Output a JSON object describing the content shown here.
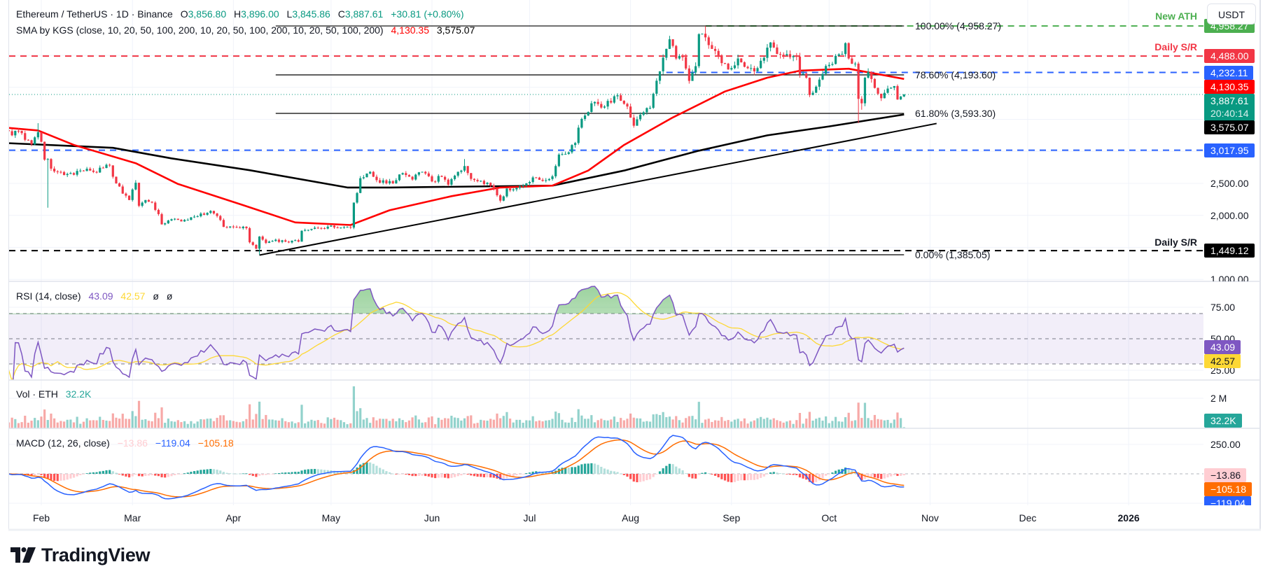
{
  "header": {
    "symbol": "Ethereum / TetherUS · 1D · Binance",
    "o_label": "O",
    "o": "3,856.80",
    "h_label": "H",
    "h": "3,896.00",
    "l_label": "L",
    "l": "3,845.86",
    "c_label": "C",
    "c": "3,887.61",
    "change": "+30.81 (+0.80%)"
  },
  "sma_legend": {
    "title": "SMA by KGS (close, 10, 20, 50, 100, 200, 10, 20, 50, 100, 200, 10, 20, 50, 100, 200)",
    "value_50": "4,130.35",
    "value_200": "3,575.07"
  },
  "rsi_legend": {
    "title": "RSI (14, close)",
    "rsi": "43.09",
    "ma": "42.57",
    "extra1": "ø",
    "extra2": "ø"
  },
  "vol_legend": {
    "title": "Vol · ETH",
    "value": "32.2K"
  },
  "macd_legend": {
    "title": "MACD (12, 26, close)",
    "hist": "−13.86",
    "macd": "−119.04",
    "signal": "−105.18"
  },
  "currency_button": "USDT",
  "line_notes": {
    "new_ath": "New ATH",
    "daily_sr_top": "Daily S/R",
    "daily_sr_bottom": "Daily S/R"
  },
  "colors": {
    "up": "#089981",
    "down": "#f23645",
    "sma50": "#ff0000",
    "sma200": "#000000",
    "rsi": "#7e57c2",
    "rsi_ma": "#fdd835",
    "macd": "#2962ff",
    "signal": "#ff6d00",
    "ath": "#4caf50",
    "support_red": "#f23645",
    "support_blue": "#2962ff",
    "support_black": "#000000"
  },
  "price_axis": {
    "ticks": [
      {
        "value": 2500,
        "text": "2,500.00"
      },
      {
        "value": 2000,
        "text": "2,000.00"
      },
      {
        "value": 1000,
        "text": "1,000.00"
      }
    ],
    "badges": [
      {
        "value": 4958.27,
        "text": "4,958.27",
        "bg": "#4caf50",
        "fg": "#ffffff"
      },
      {
        "value": 4488.0,
        "text": "4,488.00",
        "bg": "#f23645",
        "fg": "#ffffff"
      },
      {
        "value": 4232.11,
        "text": "4,232.11",
        "bg": "#2962ff",
        "fg": "#ffffff"
      },
      {
        "value": 4130.35,
        "text": "4,130.35",
        "bg": "#ff0000",
        "fg": "#ffffff"
      },
      {
        "value": 3887.61,
        "text": "3,887.61",
        "text2": "20:40:14",
        "bg": "#089981",
        "fg": "#ffffff"
      },
      {
        "value": 3575.07,
        "text": "3,575.07",
        "bg": "#000000",
        "fg": "#ffffff"
      },
      {
        "value": 3017.95,
        "text": "3,017.95",
        "bg": "#2962ff",
        "fg": "#ffffff"
      },
      {
        "value": 1449.12,
        "text": "1,449.12",
        "bg": "#000000",
        "fg": "#ffffff"
      }
    ]
  },
  "rsi_axis": {
    "ticks": [
      {
        "value": 75,
        "text": "75.00"
      },
      {
        "value": 50,
        "text": "50.00"
      },
      {
        "value": 25,
        "text": "25.00"
      }
    ],
    "badges": [
      {
        "value": 43.09,
        "text": "43.09",
        "bg": "#7e57c2",
        "fg": "#ffffff"
      },
      {
        "value": 42.57,
        "text": "42.57",
        "bg": "#fdd835",
        "fg": "#131722"
      }
    ]
  },
  "vol_axis": {
    "tick": "2 M",
    "badge": {
      "text": "32.2K",
      "bg": "#26a69a",
      "fg": "#ffffff"
    }
  },
  "macd_axis": {
    "ticks": [
      {
        "value": 250,
        "text": "250.00"
      }
    ],
    "badges": [
      {
        "value": -13.86,
        "text": "−13.86",
        "bg": "#ffcdd2",
        "fg": "#131722"
      },
      {
        "value": -105.18,
        "text": "−105.18",
        "bg": "#ff6d00",
        "fg": "#ffffff"
      },
      {
        "value": -119.04,
        "text": "−119.04",
        "bg": "#2962ff",
        "fg": "#ffffff"
      }
    ]
  },
  "time_axis": [
    {
      "date": "2025-02-01",
      "text": "Feb"
    },
    {
      "date": "2025-03-01",
      "text": "Mar"
    },
    {
      "date": "2025-04-01",
      "text": "Apr"
    },
    {
      "date": "2025-05-01",
      "text": "May"
    },
    {
      "date": "2025-06-01",
      "text": "Jun"
    },
    {
      "date": "2025-07-01",
      "text": "Jul"
    },
    {
      "date": "2025-08-01",
      "text": "Aug"
    },
    {
      "date": "2025-09-01",
      "text": "Sep"
    },
    {
      "date": "2025-10-01",
      "text": "Oct"
    },
    {
      "date": "2025-11-01",
      "text": "Nov"
    },
    {
      "date": "2025-12-01",
      "text": "Dec"
    },
    {
      "date": "2026-01-01",
      "text": "2026",
      "bold": true
    }
  ],
  "brand": "TradingView",
  "chart_data": {
    "type": "candlestick",
    "title": "Ethereum / TetherUS · 1D · Binance",
    "scale": "linear",
    "grid": true,
    "ylim": [
      1000,
      5000
    ],
    "close_keyframes": [
      [
        "2025-01-21",
        3330
      ],
      [
        "2025-01-23",
        3250
      ],
      [
        "2025-01-25",
        3320
      ],
      [
        "2025-01-27",
        3180
      ],
      [
        "2025-01-29",
        3110
      ],
      [
        "2025-01-31",
        3300
      ],
      [
        "2025-02-01",
        3150
      ],
      [
        "2025-02-02",
        2870
      ],
      [
        "2025-02-03",
        2880
      ],
      [
        "2025-02-04",
        2730
      ],
      [
        "2025-02-06",
        2680
      ],
      [
        "2025-02-08",
        2630
      ],
      [
        "2025-02-10",
        2660
      ],
      [
        "2025-02-13",
        2700
      ],
      [
        "2025-02-16",
        2700
      ],
      [
        "2025-02-18",
        2670
      ],
      [
        "2025-02-20",
        2740
      ],
      [
        "2025-02-22",
        2780
      ],
      [
        "2025-02-24",
        2500
      ],
      [
        "2025-02-26",
        2340
      ],
      [
        "2025-02-28",
        2240
      ],
      [
        "2025-03-02",
        2510
      ],
      [
        "2025-03-03",
        2150
      ],
      [
        "2025-03-05",
        2240
      ],
      [
        "2025-03-07",
        2200
      ],
      [
        "2025-03-09",
        2020
      ],
      [
        "2025-03-10",
        1860
      ],
      [
        "2025-03-12",
        1920
      ],
      [
        "2025-03-15",
        1930
      ],
      [
        "2025-03-18",
        1930
      ],
      [
        "2025-03-20",
        1980
      ],
      [
        "2025-03-23",
        2010
      ],
      [
        "2025-03-25",
        2070
      ],
      [
        "2025-03-27",
        1990
      ],
      [
        "2025-03-29",
        1820
      ],
      [
        "2025-04-01",
        1820
      ],
      [
        "2025-04-03",
        1800
      ],
      [
        "2025-04-05",
        1800
      ],
      [
        "2025-04-06",
        1580
      ],
      [
        "2025-04-08",
        1480
      ],
      [
        "2025-04-09",
        1670
      ],
      [
        "2025-04-11",
        1570
      ],
      [
        "2025-04-14",
        1620
      ],
      [
        "2025-04-17",
        1590
      ],
      [
        "2025-04-21",
        1590
      ],
      [
        "2025-04-22",
        1760
      ],
      [
        "2025-04-25",
        1790
      ],
      [
        "2025-04-28",
        1800
      ],
      [
        "2025-05-01",
        1840
      ],
      [
        "2025-05-04",
        1810
      ],
      [
        "2025-05-07",
        1810
      ],
      [
        "2025-05-08",
        2200
      ],
      [
        "2025-05-09",
        2350
      ],
      [
        "2025-05-10",
        2580
      ],
      [
        "2025-05-13",
        2680
      ],
      [
        "2025-05-15",
        2550
      ],
      [
        "2025-05-18",
        2500
      ],
      [
        "2025-05-21",
        2550
      ],
      [
        "2025-05-23",
        2660
      ],
      [
        "2025-05-26",
        2560
      ],
      [
        "2025-05-29",
        2680
      ],
      [
        "2025-06-01",
        2530
      ],
      [
        "2025-06-04",
        2600
      ],
      [
        "2025-06-06",
        2480
      ],
      [
        "2025-06-09",
        2680
      ],
      [
        "2025-06-11",
        2770
      ],
      [
        "2025-06-13",
        2570
      ],
      [
        "2025-06-16",
        2540
      ],
      [
        "2025-06-18",
        2510
      ],
      [
        "2025-06-20",
        2420
      ],
      [
        "2025-06-22",
        2230
      ],
      [
        "2025-06-24",
        2420
      ],
      [
        "2025-06-27",
        2430
      ],
      [
        "2025-06-30",
        2500
      ],
      [
        "2025-07-03",
        2590
      ],
      [
        "2025-07-06",
        2550
      ],
      [
        "2025-07-08",
        2610
      ],
      [
        "2025-07-09",
        2770
      ],
      [
        "2025-07-10",
        2950
      ],
      [
        "2025-07-12",
        2960
      ],
      [
        "2025-07-15",
        3130
      ],
      [
        "2025-07-16",
        3370
      ],
      [
        "2025-07-18",
        3560
      ],
      [
        "2025-07-20",
        3750
      ],
      [
        "2025-07-22",
        3740
      ],
      [
        "2025-07-24",
        3700
      ],
      [
        "2025-07-27",
        3860
      ],
      [
        "2025-07-29",
        3790
      ],
      [
        "2025-07-31",
        3700
      ],
      [
        "2025-08-02",
        3400
      ],
      [
        "2025-08-03",
        3500
      ],
      [
        "2025-08-05",
        3610
      ],
      [
        "2025-08-07",
        3680
      ],
      [
        "2025-08-08",
        3900
      ],
      [
        "2025-08-10",
        4250
      ],
      [
        "2025-08-12",
        4600
      ],
      [
        "2025-08-13",
        4750
      ],
      [
        "2025-08-15",
        4450
      ],
      [
        "2025-08-17",
        4470
      ],
      [
        "2025-08-19",
        4100
      ],
      [
        "2025-08-21",
        4330
      ],
      [
        "2025-08-22",
        4830
      ],
      [
        "2025-08-24",
        4780
      ],
      [
        "2025-08-26",
        4600
      ],
      [
        "2025-08-28",
        4500
      ],
      [
        "2025-08-30",
        4370
      ],
      [
        "2025-09-01",
        4300
      ],
      [
        "2025-09-03",
        4450
      ],
      [
        "2025-09-05",
        4320
      ],
      [
        "2025-09-07",
        4300
      ],
      [
        "2025-09-09",
        4300
      ],
      [
        "2025-09-11",
        4460
      ],
      [
        "2025-09-13",
        4700
      ],
      [
        "2025-09-15",
        4520
      ],
      [
        "2025-09-17",
        4500
      ],
      [
        "2025-09-19",
        4470
      ],
      [
        "2025-09-21",
        4480
      ],
      [
        "2025-09-22",
        4200
      ],
      [
        "2025-09-24",
        4150
      ],
      [
        "2025-09-25",
        3880
      ],
      [
        "2025-09-27",
        4010
      ],
      [
        "2025-09-29",
        4210
      ],
      [
        "2025-10-01",
        4350
      ],
      [
        "2025-10-03",
        4490
      ],
      [
        "2025-10-05",
        4520
      ],
      [
        "2025-10-06",
        4690
      ],
      [
        "2025-10-07",
        4450
      ],
      [
        "2025-10-09",
        4370
      ],
      [
        "2025-10-10",
        3820
      ],
      [
        "2025-10-11",
        3750
      ],
      [
        "2025-10-12",
        4150
      ],
      [
        "2025-10-13",
        4240
      ],
      [
        "2025-10-14",
        4130
      ],
      [
        "2025-10-15",
        3990
      ],
      [
        "2025-10-16",
        3900
      ],
      [
        "2025-10-17",
        3830
      ],
      [
        "2025-10-19",
        3980
      ],
      [
        "2025-10-21",
        4020
      ],
      [
        "2025-10-22",
        3810
      ],
      [
        "2025-10-23",
        3856.8
      ],
      [
        "2025-10-24",
        3887.61
      ]
    ],
    "wick_extremes": [
      {
        "date": "2025-01-31",
        "high": 3440
      },
      {
        "date": "2025-02-03",
        "low": 2120
      },
      {
        "date": "2025-03-02",
        "high": 2550
      },
      {
        "date": "2025-04-09",
        "low": 1385
      },
      {
        "date": "2025-06-11",
        "high": 2880
      },
      {
        "date": "2025-06-22",
        "low": 2200
      },
      {
        "date": "2025-08-24",
        "high": 4958.27
      },
      {
        "date": "2025-10-10",
        "low": 3440
      },
      {
        "date": "2025-10-11",
        "low": 3650
      },
      {
        "date": "2025-10-24",
        "high": 3896.0,
        "low": 3845.86
      }
    ],
    "sma50": [
      [
        "2025-01-21",
        3370
      ],
      [
        "2025-01-31",
        3326
      ],
      [
        "2025-02-11",
        3100
      ],
      [
        "2025-03-02",
        2815
      ],
      [
        "2025-03-15",
        2490
      ],
      [
        "2025-04-04",
        2160
      ],
      [
        "2025-04-20",
        1890
      ],
      [
        "2025-05-07",
        1850
      ],
      [
        "2025-05-19",
        2080
      ],
      [
        "2025-06-07",
        2300
      ],
      [
        "2025-06-22",
        2435
      ],
      [
        "2025-07-08",
        2465
      ],
      [
        "2025-07-19",
        2700
      ],
      [
        "2025-07-30",
        3100
      ],
      [
        "2025-08-14",
        3530
      ],
      [
        "2025-08-30",
        3935
      ],
      [
        "2025-09-12",
        4150
      ],
      [
        "2025-09-22",
        4260
      ],
      [
        "2025-10-07",
        4290
      ],
      [
        "2025-10-24",
        4130.35
      ]
    ],
    "sma200": [
      [
        "2025-01-21",
        3130
      ],
      [
        "2025-02-23",
        3055
      ],
      [
        "2025-03-13",
        2890
      ],
      [
        "2025-04-06",
        2705
      ],
      [
        "2025-05-06",
        2435
      ],
      [
        "2025-05-19",
        2435
      ],
      [
        "2025-07-08",
        2465
      ],
      [
        "2025-07-30",
        2700
      ],
      [
        "2025-08-22",
        3010
      ],
      [
        "2025-09-12",
        3250
      ],
      [
        "2025-10-01",
        3390
      ],
      [
        "2025-10-24",
        3575.07
      ]
    ],
    "fibonacci": {
      "from": "2025-04-14",
      "to": "2025-10-24",
      "levels": [
        {
          "value": 4958.27,
          "text": "100.00% (4,958.27)"
        },
        {
          "value": 4193.6,
          "text": "78.60% (4,193.60)"
        },
        {
          "value": 3593.3,
          "text": "61.80% (3,593.30)"
        },
        {
          "value": 1385.05,
          "text": "0.00% (1,385.05)"
        }
      ]
    },
    "horizontal_lines": [
      {
        "value": 4958.27,
        "from": "2025-08-24",
        "color": "#4caf50",
        "note": "New ATH"
      },
      {
        "value": 4488.0,
        "from": "2025-01-15",
        "color": "#f23645",
        "note": "Daily S/R"
      },
      {
        "value": 4232.11,
        "from": "2025-08-12",
        "color": "#2962ff"
      },
      {
        "value": 3017.95,
        "from": "2025-01-15",
        "color": "#2962ff"
      },
      {
        "value": 1449.12,
        "from": "2025-01-15",
        "color": "#000000",
        "note": "Daily S/R"
      }
    ],
    "current_price": 3887.61,
    "trendline": [
      [
        "2025-04-09",
        1380
      ],
      [
        "2025-11-03",
        3435
      ]
    ],
    "rsi": {
      "length": 14,
      "ma_length": 14,
      "upper": 70,
      "middle": 50,
      "lower": 30,
      "last": 43.09,
      "ma_last": 42.57
    },
    "macd": {
      "fast": 12,
      "slow": 26,
      "signal": 9,
      "hist_last": -13.86,
      "macd_last": -119.04,
      "signal_last": -105.18
    },
    "volume_last": "32.2K"
  }
}
